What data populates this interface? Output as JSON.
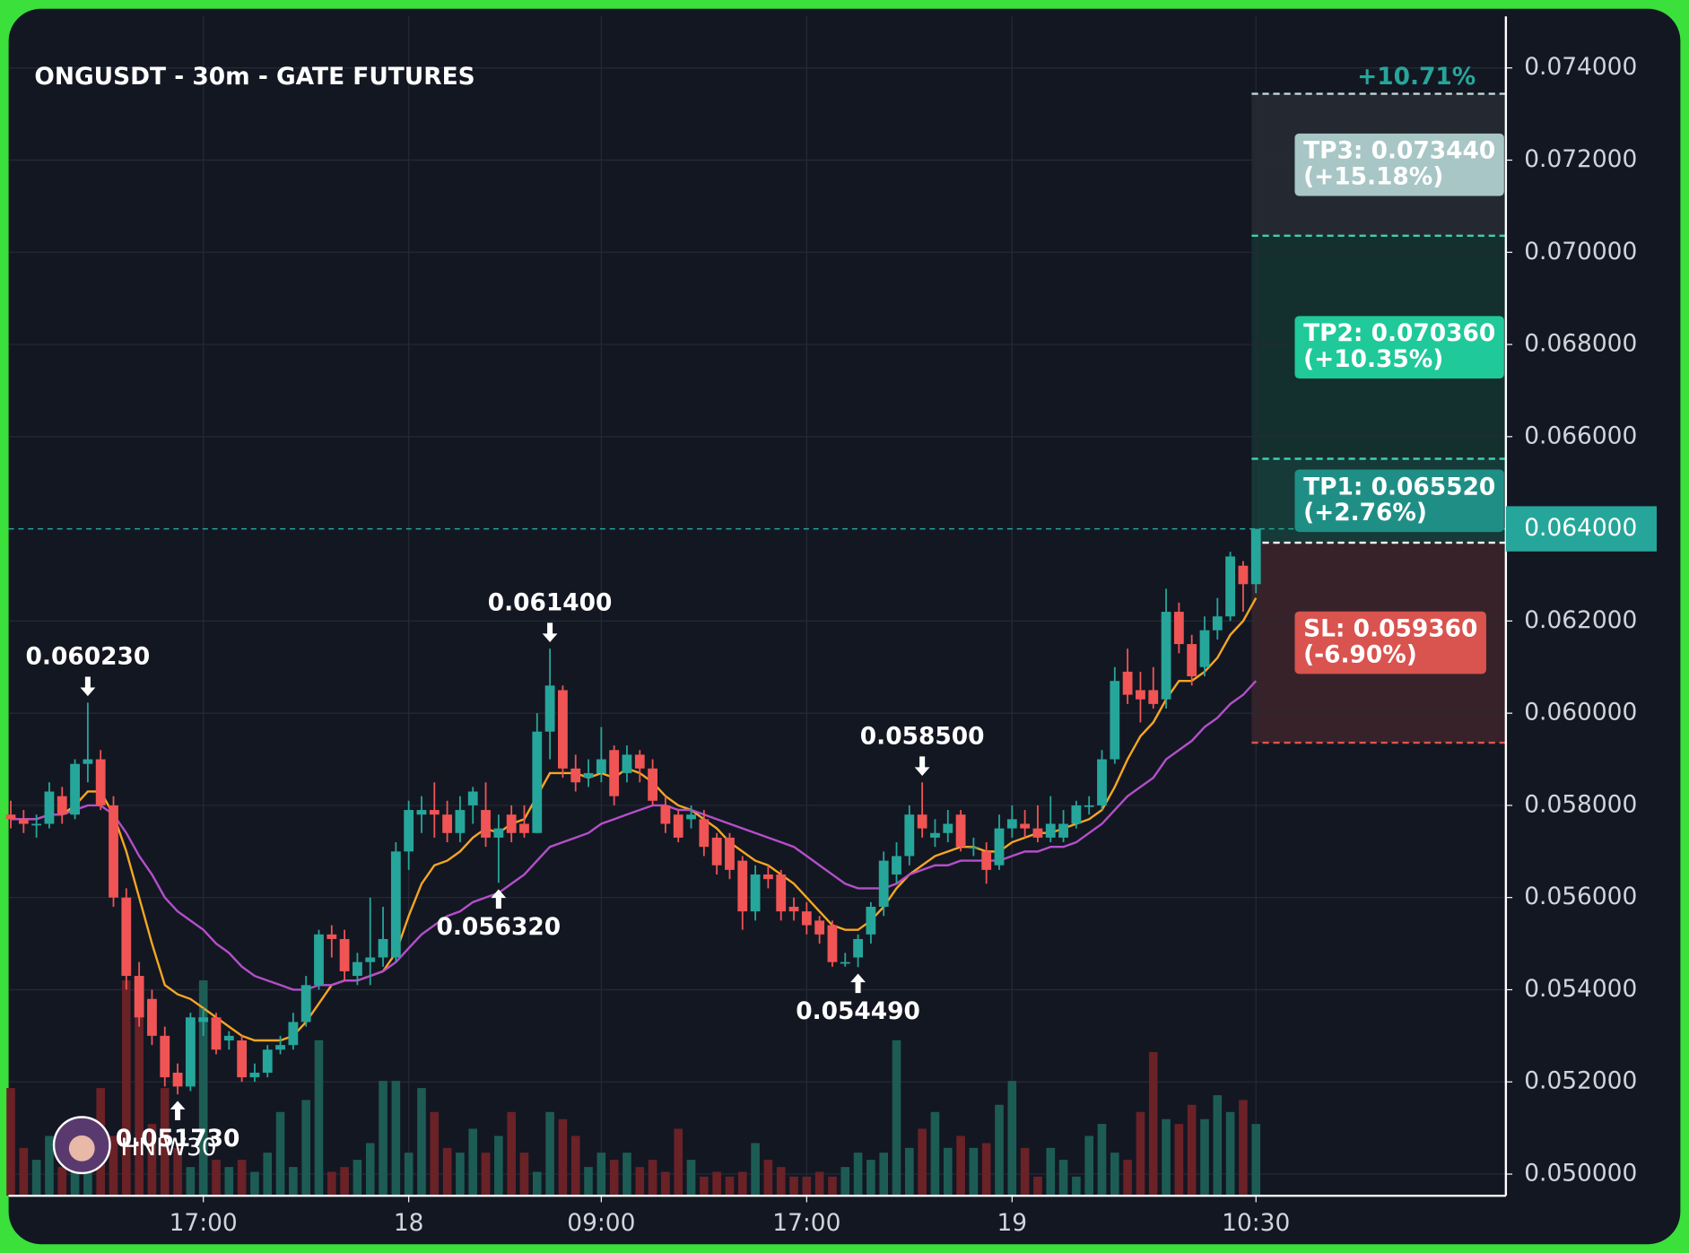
{
  "chart_data": {
    "type": "candlestick",
    "title": "ONGUSDT - 30m - GATE FUTURES",
    "categories": [
      null,
      null,
      null,
      null,
      null,
      null,
      null,
      null,
      null,
      null,
      null,
      null,
      null,
      null,
      null,
      "17:00",
      null,
      null,
      null,
      null,
      null,
      null,
      null,
      null,
      null,
      null,
      null,
      null,
      null,
      null,
      null,
      "18",
      null,
      null,
      null,
      null,
      null,
      null,
      null,
      null,
      null,
      null,
      null,
      null,
      null,
      null,
      "09:00",
      null,
      null,
      null,
      null,
      null,
      null,
      null,
      null,
      null,
      null,
      null,
      null,
      null,
      null,
      null,
      "17:00",
      null,
      null,
      null,
      null,
      null,
      null,
      null,
      null,
      null,
      null,
      null,
      null,
      null,
      null,
      null,
      "19",
      null,
      null,
      null,
      null,
      null,
      null,
      null,
      null,
      null,
      null,
      null,
      null,
      null,
      null,
      null,
      null,
      null,
      null,
      "10:30"
    ],
    "ohlc": [
      [
        0.0578,
        0.0581,
        0.0575,
        0.0577
      ],
      [
        0.0577,
        0.0579,
        0.0574,
        0.0576
      ],
      [
        0.0576,
        0.0578,
        0.0573,
        0.0576
      ],
      [
        0.0576,
        0.0585,
        0.0575,
        0.0583
      ],
      [
        0.0582,
        0.0584,
        0.0576,
        0.0578
      ],
      [
        0.0578,
        0.059,
        0.0577,
        0.0589
      ],
      [
        0.0589,
        0.06023,
        0.0585,
        0.059
      ],
      [
        0.059,
        0.0592,
        0.0579,
        0.058
      ],
      [
        0.058,
        0.0582,
        0.0558,
        0.056
      ],
      [
        0.056,
        0.0562,
        0.054,
        0.0543
      ],
      [
        0.0543,
        0.0546,
        0.0532,
        0.0534
      ],
      [
        0.0538,
        0.054,
        0.0528,
        0.053
      ],
      [
        0.053,
        0.0532,
        0.0519,
        0.0521
      ],
      [
        0.0522,
        0.0524,
        0.05173,
        0.0519
      ],
      [
        0.0519,
        0.0535,
        0.0518,
        0.0534
      ],
      [
        0.0533,
        0.0536,
        0.053,
        0.0534
      ],
      [
        0.0534,
        0.0535,
        0.0526,
        0.0527
      ],
      [
        0.0529,
        0.0531,
        0.0527,
        0.053
      ],
      [
        0.0529,
        0.053,
        0.052,
        0.0521
      ],
      [
        0.0521,
        0.0524,
        0.052,
        0.0522
      ],
      [
        0.0522,
        0.0528,
        0.0521,
        0.0527
      ],
      [
        0.0527,
        0.053,
        0.0526,
        0.0528
      ],
      [
        0.0528,
        0.0535,
        0.0527,
        0.0533
      ],
      [
        0.0533,
        0.0543,
        0.0532,
        0.0541
      ],
      [
        0.0541,
        0.0553,
        0.054,
        0.0552
      ],
      [
        0.0552,
        0.0554,
        0.0547,
        0.0551
      ],
      [
        0.0551,
        0.0553,
        0.0542,
        0.0544
      ],
      [
        0.0543,
        0.0548,
        0.0541,
        0.0546
      ],
      [
        0.0546,
        0.056,
        0.0541,
        0.0547
      ],
      [
        0.0547,
        0.0558,
        0.0545,
        0.0551
      ],
      [
        0.0547,
        0.0572,
        0.0546,
        0.057
      ],
      [
        0.057,
        0.0581,
        0.0566,
        0.0579
      ],
      [
        0.0578,
        0.0582,
        0.0574,
        0.0579
      ],
      [
        0.0579,
        0.0585,
        0.0573,
        0.0578
      ],
      [
        0.0578,
        0.0581,
        0.0572,
        0.0574
      ],
      [
        0.0574,
        0.0582,
        0.0572,
        0.0579
      ],
      [
        0.058,
        0.0584,
        0.0576,
        0.0583
      ],
      [
        0.0579,
        0.0585,
        0.0571,
        0.0573
      ],
      [
        0.0573,
        0.0578,
        0.05632,
        0.0575
      ],
      [
        0.0578,
        0.058,
        0.0572,
        0.0574
      ],
      [
        0.0576,
        0.058,
        0.0573,
        0.0574
      ],
      [
        0.0574,
        0.06,
        0.0574,
        0.0596
      ],
      [
        0.0596,
        0.0614,
        0.059,
        0.0606
      ],
      [
        0.0605,
        0.0606,
        0.0586,
        0.0588
      ],
      [
        0.0588,
        0.0591,
        0.0583,
        0.0585
      ],
      [
        0.0586,
        0.059,
        0.0584,
        0.0587
      ],
      [
        0.0587,
        0.0597,
        0.0585,
        0.059
      ],
      [
        0.0592,
        0.0593,
        0.058,
        0.0582
      ],
      [
        0.0587,
        0.0593,
        0.0585,
        0.0591
      ],
      [
        0.0591,
        0.0592,
        0.0585,
        0.0588
      ],
      [
        0.0588,
        0.059,
        0.058,
        0.0581
      ],
      [
        0.058,
        0.0582,
        0.0574,
        0.0576
      ],
      [
        0.0578,
        0.0579,
        0.0572,
        0.0573
      ],
      [
        0.0577,
        0.058,
        0.0575,
        0.0578
      ],
      [
        0.0577,
        0.0579,
        0.0569,
        0.0571
      ],
      [
        0.0573,
        0.0574,
        0.0565,
        0.0567
      ],
      [
        0.0573,
        0.0574,
        0.0564,
        0.0566
      ],
      [
        0.0568,
        0.0569,
        0.0553,
        0.0557
      ],
      [
        0.0557,
        0.0567,
        0.0555,
        0.0565
      ],
      [
        0.0565,
        0.0567,
        0.0562,
        0.0564
      ],
      [
        0.0565,
        0.0566,
        0.0555,
        0.0557
      ],
      [
        0.0558,
        0.056,
        0.0555,
        0.0557
      ],
      [
        0.0557,
        0.0559,
        0.0552,
        0.0554
      ],
      [
        0.0555,
        0.0556,
        0.055,
        0.0552
      ],
      [
        0.0554,
        0.0555,
        0.0545,
        0.0546
      ],
      [
        0.0546,
        0.0548,
        0.0545,
        0.0546
      ],
      [
        0.0547,
        0.0552,
        0.05449,
        0.0551
      ],
      [
        0.0552,
        0.0559,
        0.055,
        0.0558
      ],
      [
        0.0558,
        0.057,
        0.0556,
        0.0568
      ],
      [
        0.0565,
        0.0572,
        0.0563,
        0.0569
      ],
      [
        0.0569,
        0.058,
        0.0567,
        0.0578
      ],
      [
        0.0578,
        0.0585,
        0.0573,
        0.0575
      ],
      [
        0.0573,
        0.0577,
        0.0571,
        0.0574
      ],
      [
        0.0574,
        0.0579,
        0.0572,
        0.0576
      ],
      [
        0.0578,
        0.0579,
        0.057,
        0.0571
      ],
      [
        0.0571,
        0.0573,
        0.0569,
        0.0571
      ],
      [
        0.057,
        0.0572,
        0.0563,
        0.0566
      ],
      [
        0.0567,
        0.0578,
        0.0566,
        0.0575
      ],
      [
        0.0575,
        0.058,
        0.0573,
        0.0577
      ],
      [
        0.0576,
        0.0579,
        0.0573,
        0.0575
      ],
      [
        0.0575,
        0.058,
        0.0572,
        0.0573
      ],
      [
        0.0573,
        0.0582,
        0.0572,
        0.0576
      ],
      [
        0.0573,
        0.0579,
        0.0572,
        0.0576
      ],
      [
        0.0576,
        0.0581,
        0.0575,
        0.058
      ],
      [
        0.058,
        0.0582,
        0.0578,
        0.058
      ],
      [
        0.058,
        0.0592,
        0.0579,
        0.059
      ],
      [
        0.059,
        0.061,
        0.0589,
        0.0607
      ],
      [
        0.0609,
        0.0614,
        0.0602,
        0.0604
      ],
      [
        0.0605,
        0.0609,
        0.0598,
        0.0603
      ],
      [
        0.0605,
        0.061,
        0.0601,
        0.0602
      ],
      [
        0.0603,
        0.0627,
        0.0601,
        0.0622
      ],
      [
        0.0622,
        0.0624,
        0.0613,
        0.0615
      ],
      [
        0.0615,
        0.0617,
        0.0606,
        0.0608
      ],
      [
        0.061,
        0.0621,
        0.0608,
        0.0618
      ],
      [
        0.0618,
        0.0625,
        0.0616,
        0.0621
      ],
      [
        0.0621,
        0.0635,
        0.062,
        0.0634
      ],
      [
        0.0632,
        0.0633,
        0.0622,
        0.0628
      ],
      [
        0.0628,
        0.064,
        0.0626,
        0.064
      ]
    ],
    "volume": [
      45,
      20,
      15,
      25,
      12,
      22,
      30,
      45,
      25,
      90,
      75,
      30,
      45,
      20,
      12,
      90,
      15,
      12,
      15,
      10,
      18,
      35,
      12,
      40,
      65,
      10,
      12,
      15,
      22,
      48,
      48,
      18,
      45,
      35,
      20,
      18,
      28,
      18,
      25,
      35,
      18,
      10,
      35,
      32,
      25,
      12,
      18,
      15,
      18,
      12,
      15,
      10,
      28,
      15,
      8,
      10,
      8,
      10,
      22,
      15,
      12,
      8,
      8,
      10,
      8,
      12,
      18,
      15,
      18,
      65,
      20,
      28,
      35,
      20,
      25,
      20,
      22,
      38,
      48,
      20,
      8,
      20,
      15,
      8,
      25,
      30,
      18,
      15,
      35,
      60,
      32,
      30,
      38,
      32,
      42,
      35,
      40,
      30
    ],
    "up_color": "#26a69a",
    "down_color": "#f05454",
    "volume_up_color": "#1d5c55",
    "volume_down_color": "#6a2227",
    "moving_averages": [
      {
        "color": "#f5a623",
        "values": [
          0.0577,
          0.0577,
          0.0577,
          0.0578,
          0.0578,
          0.058,
          0.0583,
          0.0583,
          0.0578,
          0.057,
          0.056,
          0.055,
          0.0541,
          0.0539,
          0.0538,
          0.0536,
          0.0534,
          0.0532,
          0.053,
          0.0529,
          0.0529,
          0.0529,
          0.053,
          0.0533,
          0.0537,
          0.0541,
          0.0542,
          0.0542,
          0.0543,
          0.0544,
          0.0548,
          0.0556,
          0.0563,
          0.0567,
          0.0568,
          0.057,
          0.0573,
          0.0575,
          0.0574,
          0.0576,
          0.0577,
          0.0582,
          0.0587,
          0.0587,
          0.0587,
          0.0586,
          0.0587,
          0.0586,
          0.0588,
          0.0587,
          0.0585,
          0.0582,
          0.058,
          0.0579,
          0.0577,
          0.0575,
          0.0572,
          0.057,
          0.0568,
          0.0567,
          0.0565,
          0.0563,
          0.056,
          0.0557,
          0.0554,
          0.0553,
          0.0553,
          0.0555,
          0.0558,
          0.0562,
          0.0565,
          0.0567,
          0.0569,
          0.057,
          0.0571,
          0.0571,
          0.057,
          0.057,
          0.0572,
          0.0573,
          0.0574,
          0.0574,
          0.0575,
          0.0576,
          0.0577,
          0.0579,
          0.0584,
          0.059,
          0.0595,
          0.0598,
          0.0603,
          0.0607,
          0.0607,
          0.0609,
          0.0612,
          0.0617,
          0.062,
          0.0625
        ]
      },
      {
        "color": "#b44fc9",
        "values": [
          0.0577,
          0.0577,
          0.0577,
          0.0578,
          0.0578,
          0.0579,
          0.058,
          0.058,
          0.0578,
          0.0574,
          0.0569,
          0.0565,
          0.056,
          0.0557,
          0.0555,
          0.0553,
          0.055,
          0.0548,
          0.0545,
          0.0543,
          0.0542,
          0.0541,
          0.054,
          0.054,
          0.0541,
          0.0541,
          0.0542,
          0.0542,
          0.0543,
          0.0544,
          0.0546,
          0.0549,
          0.0552,
          0.0554,
          0.0556,
          0.0557,
          0.0559,
          0.056,
          0.0561,
          0.0563,
          0.0565,
          0.0568,
          0.0571,
          0.0572,
          0.0573,
          0.0574,
          0.0576,
          0.0577,
          0.0578,
          0.0579,
          0.058,
          0.058,
          0.0579,
          0.0579,
          0.0578,
          0.0577,
          0.0576,
          0.0575,
          0.0574,
          0.0573,
          0.0572,
          0.0571,
          0.0569,
          0.0567,
          0.0565,
          0.0563,
          0.0562,
          0.0562,
          0.0562,
          0.0563,
          0.0565,
          0.0566,
          0.0567,
          0.0567,
          0.0568,
          0.0568,
          0.0568,
          0.0568,
          0.0569,
          0.057,
          0.057,
          0.0571,
          0.0571,
          0.0572,
          0.0574,
          0.0576,
          0.0579,
          0.0582,
          0.0584,
          0.0586,
          0.059,
          0.0592,
          0.0594,
          0.0597,
          0.0599,
          0.0602,
          0.0604,
          0.0607
        ]
      }
    ],
    "ylim": [
      0.04953,
      0.07512
    ],
    "yticks": [
      {
        "value": 0.05,
        "label": "0.050000"
      },
      {
        "value": 0.052,
        "label": "0.052000"
      },
      {
        "value": 0.054,
        "label": "0.054000"
      },
      {
        "value": 0.056,
        "label": "0.056000"
      },
      {
        "value": 0.058,
        "label": "0.058000"
      },
      {
        "value": 0.06,
        "label": "0.060000"
      },
      {
        "value": 0.062,
        "label": "0.062000"
      },
      {
        "value": 0.066,
        "label": "0.066000"
      },
      {
        "value": 0.068,
        "label": "0.068000"
      },
      {
        "value": 0.07,
        "label": "0.070000"
      },
      {
        "value": 0.072,
        "label": "0.072000"
      },
      {
        "value": 0.074,
        "label": "0.074000"
      }
    ],
    "grid": true,
    "last_price": {
      "value": 0.064,
      "label": "0.064000",
      "color": "#26a69a"
    },
    "entry": 0.0637,
    "change_label": "+10.71%",
    "annotations": [
      {
        "text": "0.060230",
        "value": 0.06023,
        "at": 6,
        "side": "above"
      },
      {
        "text": "0.061400",
        "value": 0.0614,
        "at": 42,
        "side": "above"
      },
      {
        "text": "0.058500",
        "value": 0.0585,
        "at": 71,
        "side": "above"
      },
      {
        "text": "0.056320",
        "value": 0.05632,
        "at": 38,
        "side": "below"
      },
      {
        "text": "0.054490",
        "value": 0.05449,
        "at": 66,
        "side": "below"
      },
      {
        "text": "0.051730",
        "value": 0.05173,
        "at": 13,
        "side": "below"
      }
    ],
    "levels": [
      {
        "label": "TP3: 0.073440",
        "sublabel": "(+15.18%)",
        "value": 0.07344,
        "color": "#a8c6c6",
        "line_color": "#c3d6d6",
        "zone_color": "#232831"
      },
      {
        "label": "TP2: 0.070360",
        "sublabel": "(+10.35%)",
        "value": 0.07036,
        "color": "#1fc99a",
        "line_color": "#3fcfae",
        "zone_color": "#13302f"
      },
      {
        "label": "TP1: 0.065520",
        "sublabel": "(+2.76%)",
        "value": 0.06552,
        "color": "#1f8f86",
        "line_color": "#3fcfae",
        "zone_color": "#153a38"
      },
      {
        "label": "SL: 0.059360",
        "sublabel": "(-6.90%)",
        "value": 0.05936,
        "color": "#d9534f",
        "line_color": "#e0524f",
        "zone_color": "#38222a"
      }
    ],
    "watermark": "HNIW30"
  }
}
